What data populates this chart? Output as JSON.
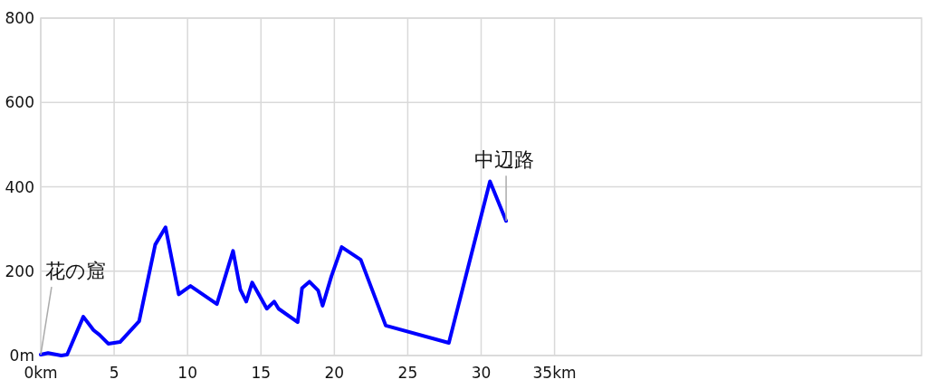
{
  "chart_data": {
    "type": "line",
    "x": [
      0,
      0.5,
      1.4,
      1.8,
      2.9,
      3.6,
      4.0,
      4.6,
      5.4,
      6.7,
      7.8,
      8.5,
      9.4,
      10.2,
      12.0,
      13.1,
      13.6,
      14.0,
      14.4,
      15.4,
      15.9,
      16.2,
      17.5,
      17.8,
      18.3,
      18.9,
      19.2,
      19.8,
      20.5,
      21.8,
      23.5,
      27.8,
      30.6,
      31.7
    ],
    "series": [
      {
        "color": "#0000ff",
        "values": [
          2,
          6,
          0,
          2,
          92,
          60,
          49,
          28,
          32,
          81,
          263,
          304,
          145,
          165,
          122,
          248,
          156,
          128,
          173,
          111,
          128,
          111,
          79,
          160,
          175,
          154,
          118,
          188,
          257,
          227,
          71,
          30,
          413,
          319
        ]
      }
    ],
    "xlim": [
      0,
      60
    ],
    "ylim": [
      0,
      800
    ],
    "xticks": [
      {
        "value": 0,
        "label": "0km"
      },
      5,
      10,
      15,
      20,
      25,
      30,
      {
        "value": 35,
        "label": "35km"
      }
    ],
    "yticks": [
      {
        "value": 0,
        "label": "0m"
      },
      200,
      400,
      600,
      800
    ],
    "grid": true,
    "marker": "none",
    "line_style": "solid",
    "annotations": [
      {
        "text": "花の窟",
        "x": 0,
        "y": 2
      },
      {
        "text": "中辺路",
        "x": 31.7,
        "y": 319
      }
    ]
  }
}
